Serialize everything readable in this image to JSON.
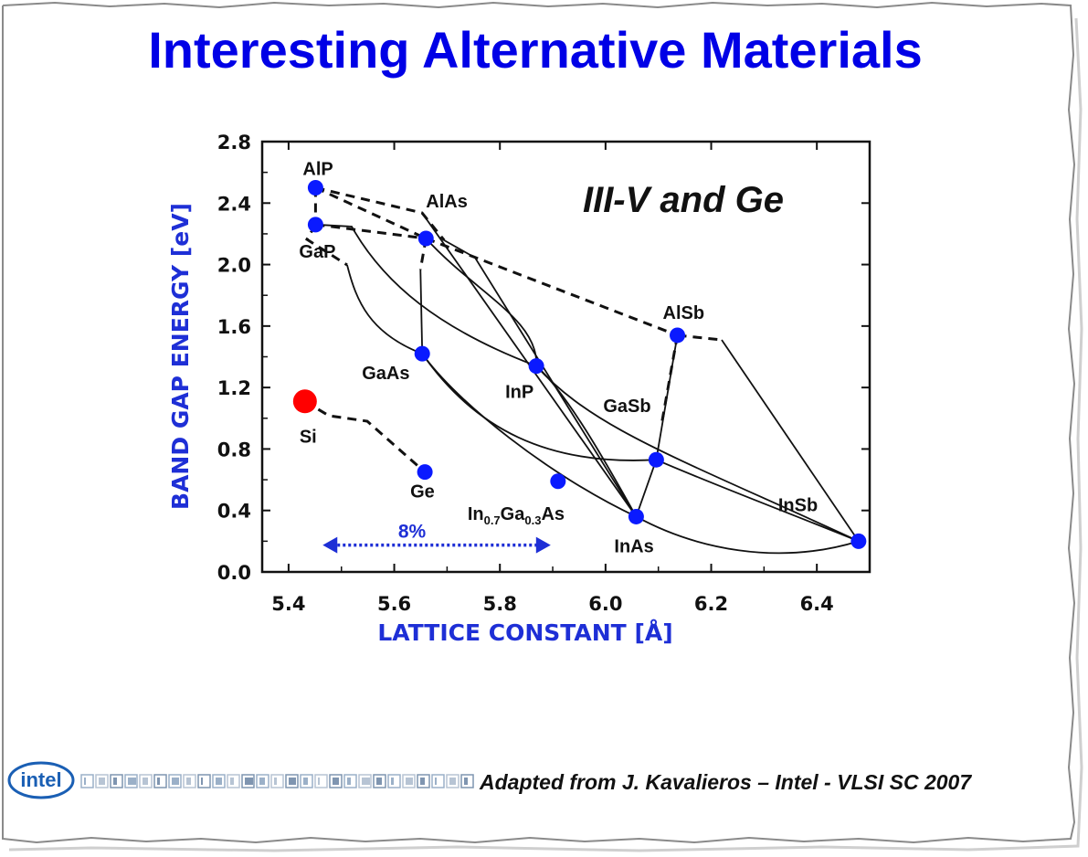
{
  "title": "Interesting Alternative Materials",
  "footer": "Adapted from J. Kavalieros – Intel - VLSI SC 2007",
  "logo_text": "intel",
  "colors": {
    "title": "#0000e6",
    "axis_label": "#1e2fd6",
    "marker": "#0a1aff",
    "si_marker": "#ff0000",
    "si_label": "#e00000",
    "arrow": "#1e2fd6"
  },
  "chart_data": {
    "type": "scatter",
    "xlabel": "LATTICE CONSTANT [Å]",
    "ylabel": "BAND GAP ENERGY [eV]",
    "xlim": [
      5.4,
      6.5
    ],
    "ylim": [
      0.0,
      2.8
    ],
    "x_ticks": [
      "5.4",
      "5.6",
      "5.8",
      "6.0",
      "6.2",
      "6.4"
    ],
    "y_ticks": [
      "0.0",
      "0.4",
      "0.8",
      "1.2",
      "1.6",
      "2.0",
      "2.4",
      "2.8"
    ],
    "annotation": "III-V and Ge",
    "points": [
      {
        "label": "AlP",
        "x": 5.451,
        "y": 2.5
      },
      {
        "label": "GaP",
        "x": 5.451,
        "y": 2.26
      },
      {
        "label": "AlAs",
        "x": 5.66,
        "y": 2.17
      },
      {
        "label": "GaAs",
        "x": 5.653,
        "y": 1.42
      },
      {
        "label": "InP",
        "x": 5.869,
        "y": 1.34
      },
      {
        "label": "AlSb",
        "x": 6.136,
        "y": 1.54
      },
      {
        "label": "GaSb",
        "x": 6.096,
        "y": 0.73
      },
      {
        "label": "InAs",
        "x": 6.058,
        "y": 0.36
      },
      {
        "label": "InSb",
        "x": 6.479,
        "y": 0.2
      },
      {
        "label": "Ge",
        "x": 5.658,
        "y": 0.65
      },
      {
        "label_main": "In",
        "label_sub1": "0.7",
        "label_mid": "Ga",
        "label_sub2": "0.3",
        "label_end": "As",
        "x": 5.91,
        "y": 0.59
      },
      {
        "label": "Si",
        "x": 5.431,
        "y": 1.11,
        "highlight": true
      }
    ],
    "arrow": {
      "label": "8%",
      "x_start": 5.43,
      "x_end": 5.91,
      "y": 0.21
    }
  }
}
